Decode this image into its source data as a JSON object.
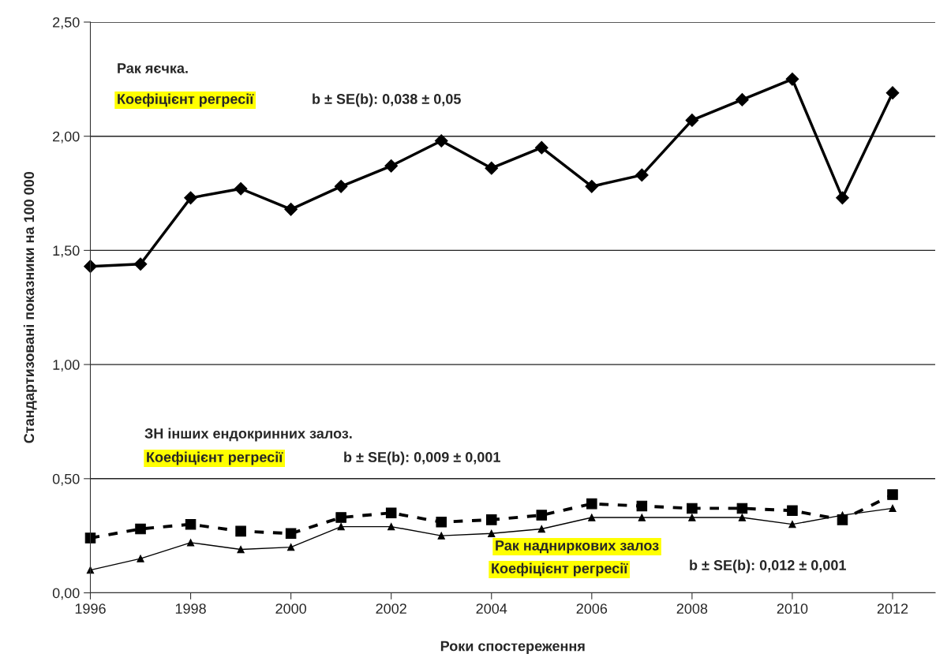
{
  "chart_data": {
    "type": "line",
    "xlabel": "Роки спостереження",
    "ylabel": "Стандартизовані показники на 100 000",
    "x": [
      1996,
      1997,
      1998,
      1999,
      2000,
      2001,
      2002,
      2003,
      2004,
      2005,
      2006,
      2007,
      2008,
      2009,
      2010,
      2011,
      2012
    ],
    "series": [
      {
        "color": "#000000",
        "marker": "diamond",
        "line_style": "solid",
        "values": [
          1.43,
          1.44,
          1.73,
          1.77,
          1.68,
          1.78,
          1.87,
          1.98,
          1.86,
          1.95,
          1.78,
          1.83,
          2.07,
          2.16,
          2.25,
          1.73,
          2.19
        ]
      },
      {
        "color": "#000000",
        "marker": "square",
        "line_style": "dashed",
        "values": [
          0.24,
          0.28,
          0.3,
          0.27,
          0.26,
          0.33,
          0.35,
          0.31,
          0.32,
          0.34,
          0.39,
          0.38,
          0.37,
          0.37,
          0.36,
          0.32,
          0.43
        ]
      },
      {
        "color": "#000000",
        "marker": "triangle",
        "line_style": "solid",
        "values": [
          0.1,
          0.15,
          0.22,
          0.19,
          0.2,
          0.29,
          0.29,
          0.25,
          0.26,
          0.28,
          0.33,
          0.33,
          0.33,
          0.33,
          0.3,
          0.34,
          0.37
        ]
      }
    ],
    "xlim": [
      1996,
      2012.85
    ],
    "xticks": [
      1996,
      1998,
      2000,
      2002,
      2004,
      2006,
      2008,
      2010,
      2012
    ],
    "ylim": [
      0,
      2.5
    ],
    "yticks": [
      {
        "value": 0,
        "label": "0,00"
      },
      {
        "value": 0.5,
        "label": "0,50"
      },
      {
        "value": 1.0,
        "label": "1,00"
      },
      {
        "value": 1.5,
        "label": "1,50"
      },
      {
        "value": 2.0,
        "label": "2,00"
      },
      {
        "value": 2.5,
        "label": "2,50"
      }
    ],
    "grid": "y",
    "legend": false,
    "annotations": [
      "Рак яєчка.",
      "Коефіцієнт регресії",
      "b ± SE(b): 0,038 ± 0,05",
      "ЗН інших ендокринних залоз.",
      "Коефіцієнт регресії",
      "b ± SE(b): 0,009 ± 0,001",
      "Рак надниркових залоз",
      "Коефіцієнт регресії",
      "b ± SE(b): 0,012 ± 0,001"
    ]
  }
}
